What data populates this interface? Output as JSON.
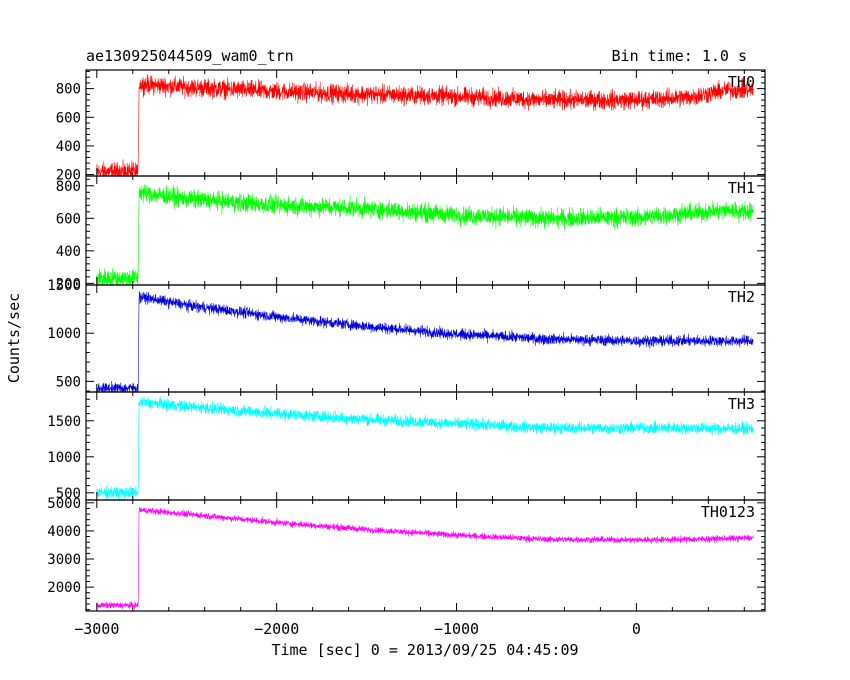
{
  "chart_data": {
    "type": "line",
    "title": "ae130925044509_wam0_trn",
    "bin_time_label": "Bin time: 1.0 s",
    "xlabel": "Time [sec] 0 = 2013/09/25 04:45:09",
    "ylabel": "Counts/sec",
    "xlim": [
      -3060,
      715
    ],
    "x_ticks": [
      -3000,
      -2000,
      -1000,
      0
    ],
    "x_tick_labels": [
      "−3000",
      "−2000",
      "−1000",
      "0"
    ],
    "panels": [
      {
        "name": "TH0",
        "color": "#ff0000",
        "ylim": [
          190,
          930
        ],
        "y_ticks": [
          200,
          400,
          600,
          800
        ],
        "y_tick_labels": [
          "200",
          "400",
          "600",
          "800"
        ],
        "noise": 40,
        "points": [
          [
            -3000,
            220
          ],
          [
            -2770,
            220
          ],
          [
            -2765,
            830
          ],
          [
            -2500,
            810
          ],
          [
            -2000,
            780
          ],
          [
            -1500,
            760
          ],
          [
            -1000,
            745
          ],
          [
            -500,
            720
          ],
          [
            0,
            720
          ],
          [
            300,
            740
          ],
          [
            500,
            790
          ],
          [
            650,
            790
          ]
        ]
      },
      {
        "name": "TH1",
        "color": "#00ff00",
        "ylim": [
          190,
          860
        ],
        "y_ticks": [
          200,
          400,
          600,
          800
        ],
        "y_tick_labels": [
          "200",
          "400",
          "600",
          "800"
        ],
        "noise": 35,
        "points": [
          [
            -3000,
            230
          ],
          [
            -2770,
            235
          ],
          [
            -2765,
            760
          ],
          [
            -2500,
            720
          ],
          [
            -2000,
            680
          ],
          [
            -1500,
            660
          ],
          [
            -1000,
            620
          ],
          [
            -500,
            600
          ],
          [
            0,
            605
          ],
          [
            300,
            630
          ],
          [
            500,
            650
          ],
          [
            650,
            640
          ]
        ]
      },
      {
        "name": "TH2",
        "color": "#0000dd",
        "ylim": [
          390,
          1500
        ],
        "y_ticks": [
          500,
          1000,
          1500
        ],
        "y_tick_labels": [
          "500",
          "1000",
          "1500"
        ],
        "noise": 35,
        "points": [
          [
            -3000,
            430
          ],
          [
            -2770,
            430
          ],
          [
            -2765,
            1380
          ],
          [
            -2500,
            1290
          ],
          [
            -2000,
            1170
          ],
          [
            -1500,
            1070
          ],
          [
            -1000,
            990
          ],
          [
            -500,
            940
          ],
          [
            0,
            920
          ],
          [
            300,
            920
          ],
          [
            650,
            920
          ]
        ]
      },
      {
        "name": "TH3",
        "color": "#00ffff",
        "ylim": [
          400,
          1900
        ],
        "y_ticks": [
          500,
          1000,
          1500
        ],
        "y_tick_labels": [
          "500",
          "1000",
          "1500"
        ],
        "noise": 50,
        "points": [
          [
            -3000,
            500
          ],
          [
            -2770,
            500
          ],
          [
            -2765,
            1760
          ],
          [
            -2500,
            1700
          ],
          [
            -2000,
            1600
          ],
          [
            -1500,
            1520
          ],
          [
            -1000,
            1460
          ],
          [
            -500,
            1400
          ],
          [
            0,
            1400
          ],
          [
            300,
            1400
          ],
          [
            650,
            1390
          ]
        ]
      },
      {
        "name": "TH0123",
        "color": "#ff00ff",
        "ylim": [
          1150,
          5100
        ],
        "y_ticks": [
          2000,
          3000,
          4000,
          5000
        ],
        "y_tick_labels": [
          "2000",
          "3000",
          "4000",
          "5000"
        ],
        "noise": 70,
        "points": [
          [
            -3000,
            1350
          ],
          [
            -2770,
            1350
          ],
          [
            -2765,
            4750
          ],
          [
            -2500,
            4600
          ],
          [
            -2000,
            4300
          ],
          [
            -1500,
            4050
          ],
          [
            -1000,
            3850
          ],
          [
            -500,
            3700
          ],
          [
            0,
            3680
          ],
          [
            300,
            3700
          ],
          [
            650,
            3750
          ]
        ]
      }
    ]
  }
}
